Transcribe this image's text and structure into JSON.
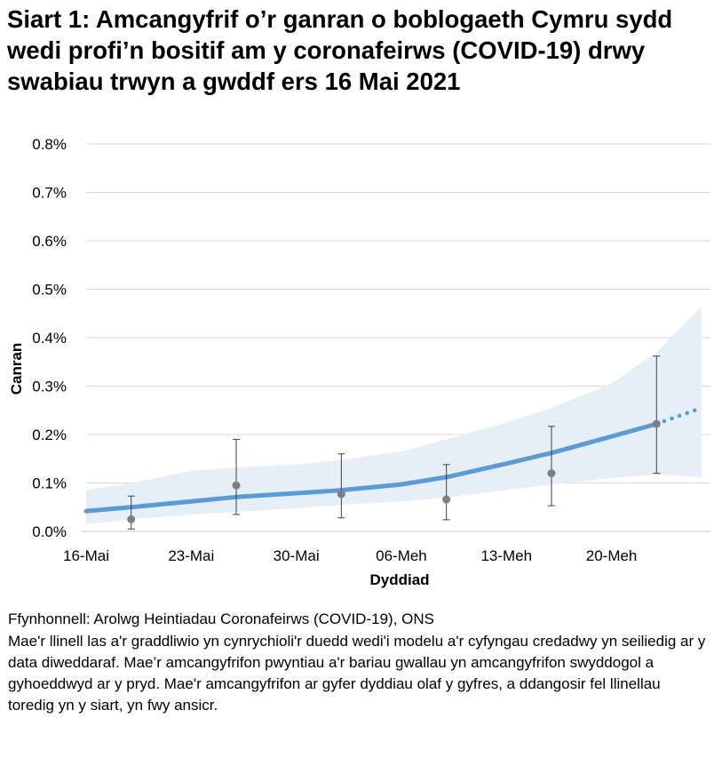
{
  "title": "Siart 1: Amcangyfrif o’r ganran o boblogaeth Cymru sydd wedi profi’n bositif am y coronafeirws (COVID-19) drwy swabiau trwyn a gwddf ers 16 Mai 2021",
  "source": "Ffynhonnell: Arolwg Heintiadau Coronafeirws (COVID-19), ONS",
  "notes": "Mae'r llinell las a'r graddliwio yn cynrychioli'r duedd wedi'i modelu a'r cyfyngau credadwy yn seiliedig ar y data diweddaraf. Mae’r amcangyfrifon pwyntiau a'r bariau gwallau yn amcangyfrifon swyddogol a gyhoeddwyd ar y pryd. Mae'r amcangyfrifon ar gyfer dyddiau olaf y gyfres, a ddangosir fel llinellau toredig yn y siart, yn fwy ansicr.",
  "chart_data": {
    "type": "line",
    "xlabel": "Dyddiad",
    "ylabel": "Canran",
    "ylim": [
      0,
      0.8
    ],
    "yticks": [
      "0.0%",
      "0.1%",
      "0.2%",
      "0.3%",
      "0.4%",
      "0.5%",
      "0.6%",
      "0.7%",
      "0.8%"
    ],
    "xticks": [
      {
        "date": "2021-05-16",
        "label": "16-Mai"
      },
      {
        "date": "2021-05-23",
        "label": "23-Mai"
      },
      {
        "date": "2021-05-30",
        "label": "30-Mai"
      },
      {
        "date": "2021-06-06",
        "label": "06-Meh"
      },
      {
        "date": "2021-06-13",
        "label": "13-Meh"
      },
      {
        "date": "2021-06-20",
        "label": "20-Meh"
      }
    ],
    "xlim": [
      "2021-05-16",
      "2021-06-26"
    ],
    "grid": true,
    "colors": {
      "trend": "#5b9bd5",
      "band": "#e6eef8",
      "points": "#7f7f7f",
      "errorbars": "#404040",
      "grid": "#d9d9d9"
    },
    "trend": [
      {
        "date": "2021-05-16",
        "value": 0.042,
        "lower": 0.015,
        "upper": 0.085
      },
      {
        "date": "2021-05-19",
        "value": 0.05,
        "lower": 0.025,
        "upper": 0.1
      },
      {
        "date": "2021-05-23",
        "value": 0.062,
        "lower": 0.035,
        "upper": 0.125
      },
      {
        "date": "2021-05-26",
        "value": 0.071,
        "lower": 0.04,
        "upper": 0.132
      },
      {
        "date": "2021-05-30",
        "value": 0.079,
        "lower": 0.048,
        "upper": 0.138
      },
      {
        "date": "2021-06-02",
        "value": 0.085,
        "lower": 0.055,
        "upper": 0.148
      },
      {
        "date": "2021-06-06",
        "value": 0.097,
        "lower": 0.062,
        "upper": 0.165
      },
      {
        "date": "2021-06-09",
        "value": 0.112,
        "lower": 0.07,
        "upper": 0.19
      },
      {
        "date": "2021-06-13",
        "value": 0.14,
        "lower": 0.085,
        "upper": 0.225
      },
      {
        "date": "2021-06-16",
        "value": 0.162,
        "lower": 0.097,
        "upper": 0.255
      },
      {
        "date": "2021-06-20",
        "value": 0.196,
        "lower": 0.11,
        "upper": 0.305
      },
      {
        "date": "2021-06-23",
        "value": 0.222,
        "lower": 0.118,
        "upper": 0.37
      }
    ],
    "trend_provisional": [
      {
        "date": "2021-06-23",
        "value": 0.222,
        "lower": 0.118,
        "upper": 0.37
      },
      {
        "date": "2021-06-26",
        "value": 0.255,
        "lower": 0.112,
        "upper": 0.465
      }
    ],
    "official_estimates": [
      {
        "date": "2021-05-19",
        "value": 0.025,
        "lower": 0.005,
        "upper": 0.073
      },
      {
        "date": "2021-05-26",
        "value": 0.095,
        "lower": 0.035,
        "upper": 0.19
      },
      {
        "date": "2021-06-02",
        "value": 0.077,
        "lower": 0.028,
        "upper": 0.16
      },
      {
        "date": "2021-06-09",
        "value": 0.066,
        "lower": 0.024,
        "upper": 0.138
      },
      {
        "date": "2021-06-16",
        "value": 0.12,
        "lower": 0.053,
        "upper": 0.217
      },
      {
        "date": "2021-06-23",
        "value": 0.222,
        "lower": 0.12,
        "upper": 0.362
      }
    ]
  }
}
